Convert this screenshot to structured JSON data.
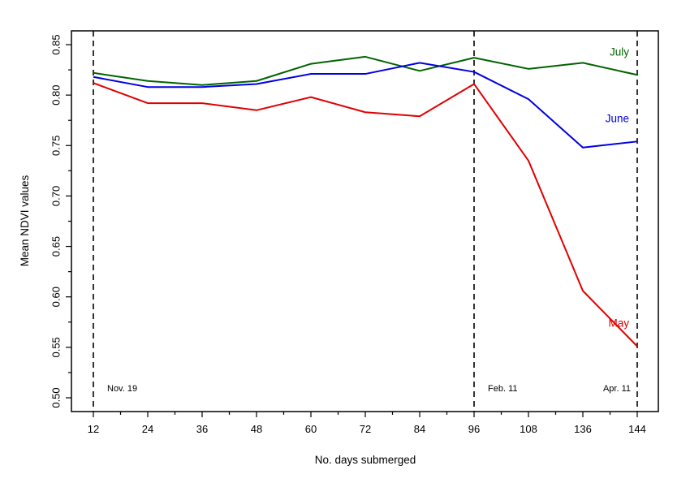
{
  "chart_data": {
    "type": "line",
    "xlabel": "No. days submerged",
    "ylabel": "Mean NDVI values",
    "categories": [
      "12",
      "24",
      "36",
      "48",
      "60",
      "72",
      "84",
      "96",
      "108",
      "136",
      "144"
    ],
    "ylim": [
      0.5,
      0.85
    ],
    "yticks": [
      "0.50",
      "0.55",
      "0.60",
      "0.65",
      "0.70",
      "0.75",
      "0.80",
      "0.85"
    ],
    "series": [
      {
        "name": "July",
        "color": "#006400",
        "values": [
          0.822,
          0.814,
          0.81,
          0.814,
          0.831,
          0.838,
          0.824,
          0.837,
          0.826,
          0.832,
          0.82
        ]
      },
      {
        "name": "June",
        "color": "#0000e0",
        "values": [
          0.818,
          0.808,
          0.808,
          0.811,
          0.821,
          0.821,
          0.832,
          0.823,
          0.796,
          0.748,
          0.754
        ]
      },
      {
        "name": "May",
        "color": "#e00000",
        "values": [
          0.812,
          0.792,
          0.792,
          0.785,
          0.798,
          0.783,
          0.779,
          0.811,
          0.735,
          0.606,
          0.551
        ]
      }
    ],
    "markers": [
      {
        "category": "12",
        "label": "Nov. 19"
      },
      {
        "category": "96",
        "label": "Feb. 11"
      },
      {
        "category": "144",
        "label": "Apr. 11"
      }
    ],
    "grid": false,
    "legend": "inline labels at right end of each line"
  }
}
